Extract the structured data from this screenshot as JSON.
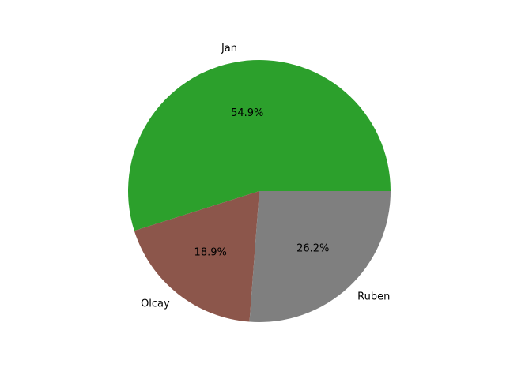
{
  "chart_data": {
    "type": "pie",
    "title": "",
    "categories": [
      "Jan",
      "Olcay",
      "Ruben"
    ],
    "values": [
      54.9,
      18.9,
      26.2
    ],
    "percent_labels": [
      "54.9%",
      "18.9%",
      "26.2%"
    ],
    "colors": [
      "#2ca02c",
      "#8c564b",
      "#7f7f7f"
    ],
    "start_angle_deg": 0,
    "direction": "counterclockwise",
    "legend": "none"
  }
}
